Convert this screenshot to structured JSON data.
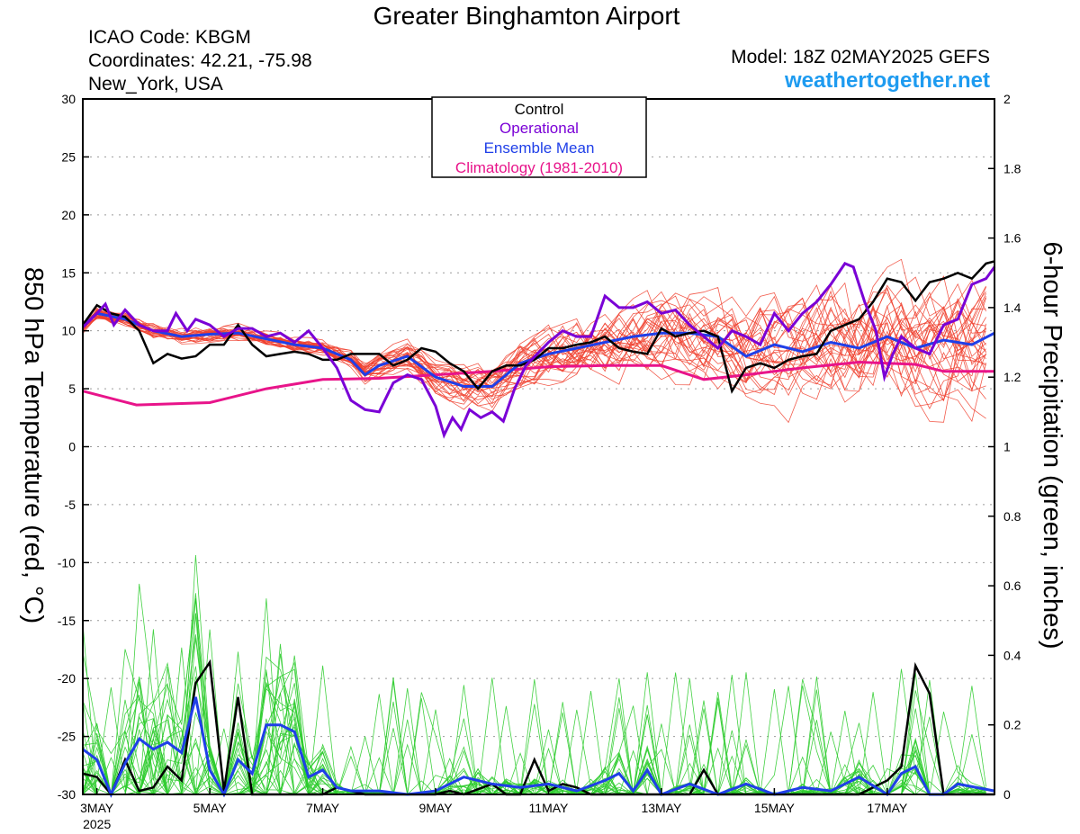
{
  "header": {
    "title": "Greater Binghamton Airport",
    "icao": "ICAO Code: KBGM",
    "coords": "Coordinates: 42.21, -75.98",
    "location": "New_York, USA",
    "model": "Model: 18Z 02MAY2025 GEFS",
    "site": "weathertogether.net"
  },
  "colors": {
    "members_temp": "#f0402e",
    "members_precip": "#2ecc2e",
    "control": "#000000",
    "operational": "#7a00d6",
    "ensemble_mean": "#1f3fe8",
    "climatology": "#e8148a",
    "site": "#1e9bf0",
    "legend_control": "#000000"
  },
  "chart_data": {
    "type": "line",
    "xlabel": "",
    "ylabel_left": "850 hPa Temperature (red, °C)",
    "ylabel_right": "6-hour Precipitation (green, inches)",
    "ylim_left": [
      -30,
      30
    ],
    "ylim_right": [
      0,
      2
    ],
    "xlim_days": [
      0,
      15.9
    ],
    "left_ticks": [
      "30",
      "25",
      "20",
      "15",
      "10",
      "5",
      "0",
      "-5",
      "-10",
      "-15",
      "-20",
      "-25",
      "-30"
    ],
    "right_ticks": [
      "2",
      "1.8",
      "1.6",
      "1.4",
      "1.2",
      "1",
      "0.8",
      "0.6",
      "0.4",
      "0.2",
      "0"
    ],
    "x_ticks": [
      {
        "day": 0,
        "label": "3MAY",
        "sub": "2025"
      },
      {
        "day": 2,
        "label": "5MAY",
        "sub": ""
      },
      {
        "day": 4,
        "label": "7MAY",
        "sub": ""
      },
      {
        "day": 6,
        "label": "9MAY",
        "sub": ""
      },
      {
        "day": 8,
        "label": "11MAY",
        "sub": ""
      },
      {
        "day": 10,
        "label": "13MAY",
        "sub": ""
      },
      {
        "day": 12,
        "label": "15MAY",
        "sub": ""
      },
      {
        "day": 14,
        "label": "17MAY",
        "sub": ""
      }
    ],
    "grid": true,
    "legend": {
      "position": "top-center",
      "entries": [
        "Control",
        "Operational",
        "Ensemble Mean",
        "Climatology (1981-2010)"
      ]
    },
    "temp_series": {
      "control": [
        [
          -0.25,
          10.5
        ],
        [
          0,
          12.2
        ],
        [
          0.25,
          11.5
        ],
        [
          0.5,
          11.2
        ],
        [
          0.75,
          10.0
        ],
        [
          1.0,
          7.2
        ],
        [
          1.25,
          8.0
        ],
        [
          1.5,
          7.6
        ],
        [
          1.75,
          7.8
        ],
        [
          2.0,
          8.8
        ],
        [
          2.25,
          8.8
        ],
        [
          2.5,
          10.5
        ],
        [
          2.75,
          8.8
        ],
        [
          3.0,
          7.8
        ],
        [
          3.25,
          8.0
        ],
        [
          3.5,
          8.2
        ],
        [
          3.75,
          8.0
        ],
        [
          4.0,
          7.5
        ],
        [
          4.25,
          7.5
        ],
        [
          4.5,
          8.0
        ],
        [
          4.75,
          8.0
        ],
        [
          5.0,
          8.0
        ],
        [
          5.25,
          7.0
        ],
        [
          5.5,
          7.5
        ],
        [
          5.75,
          8.5
        ],
        [
          6.0,
          8.2
        ],
        [
          6.25,
          7.2
        ],
        [
          6.5,
          6.5
        ],
        [
          6.75,
          5.0
        ],
        [
          7.0,
          6.5
        ],
        [
          7.25,
          7.0
        ],
        [
          7.5,
          7.0
        ],
        [
          7.75,
          7.5
        ],
        [
          8.0,
          8.5
        ],
        [
          8.25,
          8.5
        ],
        [
          8.5,
          8.8
        ],
        [
          8.75,
          9.0
        ],
        [
          9.0,
          9.5
        ],
        [
          9.25,
          8.5
        ],
        [
          9.5,
          8.2
        ],
        [
          9.75,
          8.0
        ],
        [
          10.0,
          10.2
        ],
        [
          10.25,
          9.5
        ],
        [
          10.5,
          9.8
        ],
        [
          10.75,
          10.0
        ],
        [
          11.0,
          9.5
        ],
        [
          11.25,
          4.8
        ],
        [
          11.5,
          6.8
        ],
        [
          11.75,
          7.2
        ],
        [
          12.0,
          6.8
        ],
        [
          12.25,
          7.5
        ],
        [
          12.5,
          7.8
        ],
        [
          12.75,
          8.0
        ],
        [
          13.0,
          10.0
        ],
        [
          13.25,
          10.5
        ],
        [
          13.5,
          11.0
        ],
        [
          13.75,
          12.5
        ],
        [
          14.0,
          14.5
        ],
        [
          14.25,
          14.2
        ],
        [
          14.5,
          12.6
        ],
        [
          14.75,
          14.2
        ],
        [
          15.0,
          14.5
        ],
        [
          15.25,
          15.0
        ],
        [
          15.5,
          14.5
        ],
        [
          15.75,
          15.8
        ],
        [
          15.9,
          16.0
        ]
      ],
      "operational": [
        [
          -0.25,
          10.3
        ],
        [
          0,
          11.5
        ],
        [
          0.15,
          12.3
        ],
        [
          0.3,
          10.5
        ],
        [
          0.5,
          11.8
        ],
        [
          0.75,
          10.5
        ],
        [
          1.0,
          10.0
        ],
        [
          1.25,
          10.0
        ],
        [
          1.4,
          11.5
        ],
        [
          1.6,
          10.0
        ],
        [
          1.75,
          11.0
        ],
        [
          2.0,
          10.5
        ],
        [
          2.25,
          9.5
        ],
        [
          2.5,
          10.2
        ],
        [
          2.75,
          10.2
        ],
        [
          3.0,
          9.5
        ],
        [
          3.25,
          9.8
        ],
        [
          3.5,
          9.0
        ],
        [
          3.75,
          10.0
        ],
        [
          4.0,
          8.5
        ],
        [
          4.25,
          6.8
        ],
        [
          4.5,
          4.0
        ],
        [
          4.75,
          3.2
        ],
        [
          5.0,
          3.0
        ],
        [
          5.25,
          5.5
        ],
        [
          5.5,
          6.2
        ],
        [
          5.75,
          5.8
        ],
        [
          6.0,
          3.5
        ],
        [
          6.15,
          1.0
        ],
        [
          6.3,
          2.5
        ],
        [
          6.45,
          1.5
        ],
        [
          6.6,
          3.2
        ],
        [
          6.8,
          2.5
        ],
        [
          7.0,
          3.0
        ],
        [
          7.2,
          2.2
        ],
        [
          7.4,
          5.0
        ],
        [
          7.6,
          7.0
        ],
        [
          8.0,
          9.0
        ],
        [
          8.25,
          10.0
        ],
        [
          8.5,
          9.5
        ],
        [
          8.75,
          9.5
        ],
        [
          9.0,
          13.0
        ],
        [
          9.25,
          12.0
        ],
        [
          9.5,
          12.0
        ],
        [
          9.75,
          12.5
        ],
        [
          10.0,
          11.5
        ],
        [
          10.25,
          11.8
        ],
        [
          10.5,
          10.5
        ],
        [
          10.75,
          9.5
        ],
        [
          11.0,
          8.5
        ],
        [
          11.25,
          10.0
        ],
        [
          11.5,
          9.5
        ],
        [
          11.75,
          8.8
        ],
        [
          12.0,
          11.5
        ],
        [
          12.25,
          10.0
        ],
        [
          12.5,
          11.5
        ],
        [
          12.75,
          12.5
        ],
        [
          13.0,
          14.0
        ],
        [
          13.25,
          15.8
        ],
        [
          13.4,
          15.5
        ],
        [
          13.6,
          12.5
        ],
        [
          13.8,
          10.0
        ],
        [
          13.95,
          6.0
        ],
        [
          14.1,
          8.0
        ],
        [
          14.25,
          9.5
        ],
        [
          14.5,
          8.5
        ],
        [
          14.75,
          8.0
        ],
        [
          15.0,
          10.5
        ],
        [
          15.25,
          11.0
        ],
        [
          15.5,
          14.0
        ],
        [
          15.75,
          14.5
        ],
        [
          15.9,
          15.5
        ]
      ],
      "mean": [
        [
          -0.25,
          10.4
        ],
        [
          0,
          11.5
        ],
        [
          0.5,
          11.0
        ],
        [
          1.0,
          10.0
        ],
        [
          1.5,
          9.5
        ],
        [
          2.0,
          9.7
        ],
        [
          2.5,
          9.8
        ],
        [
          3.0,
          9.3
        ],
        [
          3.5,
          8.8
        ],
        [
          4.0,
          8.5
        ],
        [
          4.5,
          7.5
        ],
        [
          4.75,
          6.2
        ],
        [
          5.0,
          7.0
        ],
        [
          5.5,
          7.8
        ],
        [
          6.0,
          6.0
        ],
        [
          6.5,
          5.2
        ],
        [
          7.0,
          5.2
        ],
        [
          7.5,
          7.2
        ],
        [
          8.0,
          8.0
        ],
        [
          8.5,
          8.5
        ],
        [
          9.0,
          9.0
        ],
        [
          9.5,
          9.5
        ],
        [
          10.0,
          9.8
        ],
        [
          10.5,
          9.8
        ],
        [
          11.0,
          9.5
        ],
        [
          11.5,
          7.8
        ],
        [
          12.0,
          8.8
        ],
        [
          12.5,
          8.2
        ],
        [
          13.0,
          9.0
        ],
        [
          13.5,
          8.5
        ],
        [
          14.0,
          9.5
        ],
        [
          14.5,
          8.5
        ],
        [
          15.0,
          9.2
        ],
        [
          15.5,
          8.8
        ],
        [
          15.9,
          9.8
        ]
      ],
      "climatology": [
        [
          -0.25,
          4.8
        ],
        [
          0.7,
          3.6
        ],
        [
          2.0,
          3.8
        ],
        [
          3.0,
          5.0
        ],
        [
          4.0,
          5.8
        ],
        [
          5.0,
          5.9
        ],
        [
          6.0,
          6.2
        ],
        [
          7.0,
          6.5
        ],
        [
          8.0,
          6.9
        ],
        [
          9.0,
          7.0
        ],
        [
          10.0,
          7.0
        ],
        [
          10.75,
          5.8
        ],
        [
          11.5,
          6.2
        ],
        [
          12.5,
          6.8
        ],
        [
          13.5,
          7.3
        ],
        [
          14.5,
          7.1
        ],
        [
          15.0,
          6.5
        ],
        [
          15.9,
          6.5
        ]
      ]
    },
    "precip_series": {
      "control": [
        [
          -0.25,
          0.06
        ],
        [
          0,
          0.05
        ],
        [
          0.25,
          0.0
        ],
        [
          0.5,
          0.1
        ],
        [
          0.75,
          0.01
        ],
        [
          1.0,
          0.02
        ],
        [
          1.25,
          0.08
        ],
        [
          1.5,
          0.04
        ],
        [
          1.75,
          0.32
        ],
        [
          2.0,
          0.38
        ],
        [
          2.25,
          0.01
        ],
        [
          2.5,
          0.28
        ],
        [
          2.75,
          0.0
        ],
        [
          3.0,
          0.0
        ],
        [
          3.5,
          0.0
        ],
        [
          4.0,
          0.0
        ],
        [
          4.25,
          0.02
        ],
        [
          4.5,
          0.01
        ],
        [
          4.75,
          0.0
        ],
        [
          5.0,
          0.0
        ],
        [
          5.5,
          0.0
        ],
        [
          6.0,
          0.0
        ],
        [
          6.25,
          0.01
        ],
        [
          6.5,
          0.0
        ],
        [
          7.0,
          0.03
        ],
        [
          7.25,
          0.0
        ],
        [
          7.5,
          0.0
        ],
        [
          7.75,
          0.1
        ],
        [
          8.0,
          0.01
        ],
        [
          8.25,
          0.03
        ],
        [
          8.5,
          0.02
        ],
        [
          8.75,
          0.0
        ],
        [
          10.5,
          0.0
        ],
        [
          10.75,
          0.07
        ],
        [
          11.0,
          0.0
        ],
        [
          13.5,
          0.0
        ],
        [
          14.0,
          0.04
        ],
        [
          14.25,
          0.08
        ],
        [
          14.5,
          0.37
        ],
        [
          14.75,
          0.29
        ],
        [
          15.0,
          0.0
        ],
        [
          15.25,
          0.0
        ],
        [
          15.9,
          0.0
        ]
      ],
      "mean": [
        [
          -0.25,
          0.13
        ],
        [
          0,
          0.1
        ],
        [
          0.25,
          0.0
        ],
        [
          0.5,
          0.09
        ],
        [
          0.75,
          0.16
        ],
        [
          1.0,
          0.13
        ],
        [
          1.25,
          0.15
        ],
        [
          1.5,
          0.12
        ],
        [
          1.75,
          0.28
        ],
        [
          2.0,
          0.07
        ],
        [
          2.25,
          0.0
        ],
        [
          2.5,
          0.1
        ],
        [
          2.75,
          0.06
        ],
        [
          3.0,
          0.2
        ],
        [
          3.25,
          0.2
        ],
        [
          3.5,
          0.18
        ],
        [
          3.75,
          0.05
        ],
        [
          4.0,
          0.07
        ],
        [
          4.25,
          0.02
        ],
        [
          4.5,
          0.01
        ],
        [
          5.0,
          0.01
        ],
        [
          5.5,
          0.0
        ],
        [
          6.0,
          0.01
        ],
        [
          6.5,
          0.05
        ],
        [
          7.0,
          0.03
        ],
        [
          7.5,
          0.02
        ],
        [
          8.0,
          0.03
        ],
        [
          8.5,
          0.01
        ],
        [
          9.0,
          0.04
        ],
        [
          9.25,
          0.06
        ],
        [
          9.5,
          0.01
        ],
        [
          9.75,
          0.07
        ],
        [
          10.0,
          0.0
        ],
        [
          10.5,
          0.03
        ],
        [
          11.0,
          0.0
        ],
        [
          11.5,
          0.03
        ],
        [
          12.0,
          0.0
        ],
        [
          12.5,
          0.02
        ],
        [
          13.0,
          0.01
        ],
        [
          13.5,
          0.05
        ],
        [
          14.0,
          0.0
        ],
        [
          14.25,
          0.06
        ],
        [
          14.5,
          0.08
        ],
        [
          14.75,
          0.0
        ],
        [
          15.0,
          0.0
        ],
        [
          15.25,
          0.03
        ],
        [
          15.9,
          0.01
        ]
      ]
    }
  }
}
